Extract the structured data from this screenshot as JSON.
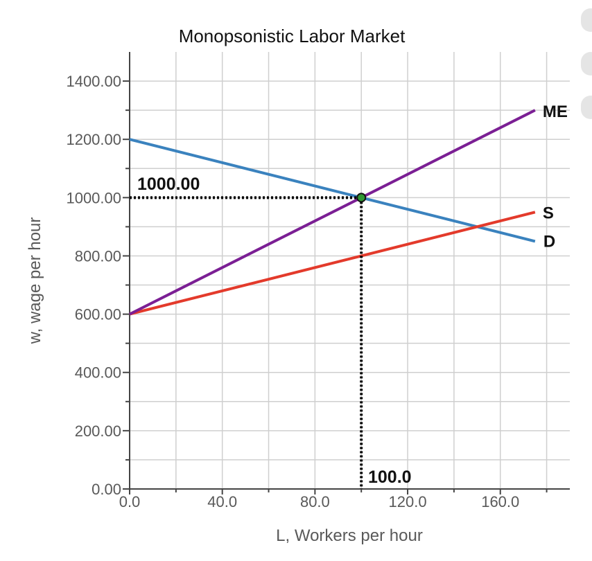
{
  "chart_data": {
    "type": "line",
    "title": "Monopsonistic Labor Market",
    "xlabel": "L, Workers per hour",
    "ylabel": "w, wage per hour",
    "xlim": [
      0,
      190
    ],
    "ylim": [
      0,
      1500
    ],
    "x_ticks": [
      0,
      40,
      80,
      120,
      160
    ],
    "x_tick_labels": [
      "0.0",
      "40.0",
      "80.0",
      "120.0",
      "160.0"
    ],
    "y_ticks": [
      0,
      200,
      400,
      600,
      800,
      1000,
      1200,
      1400
    ],
    "y_tick_labels": [
      "0.00",
      "200.00",
      "400.00",
      "600.00",
      "800.00",
      "1000.00",
      "1200.00",
      "1400.00"
    ],
    "grid": true,
    "series": [
      {
        "name": "D",
        "color": "#3a82be",
        "points": [
          [
            0,
            1200
          ],
          [
            175,
            850
          ]
        ]
      },
      {
        "name": "S",
        "color": "#e33a2b",
        "points": [
          [
            0,
            600
          ],
          [
            175,
            950
          ]
        ]
      },
      {
        "name": "ME",
        "color": "#7b1f94",
        "points": [
          [
            0,
            600
          ],
          [
            175,
            1300
          ]
        ]
      }
    ],
    "equilibrium": {
      "x": 100,
      "y": 1000,
      "color": "#2f9733"
    },
    "annotations": {
      "y_value_label": "1000.00",
      "x_value_label": "100.0"
    }
  },
  "ui_controls": [
    {
      "icon": "circle-control-icon",
      "color": "#e5e5e5"
    },
    {
      "icon": "circle-control-icon",
      "color": "#e5e5e5"
    },
    {
      "icon": "circle-control-icon",
      "color": "#e5e5e5"
    }
  ]
}
